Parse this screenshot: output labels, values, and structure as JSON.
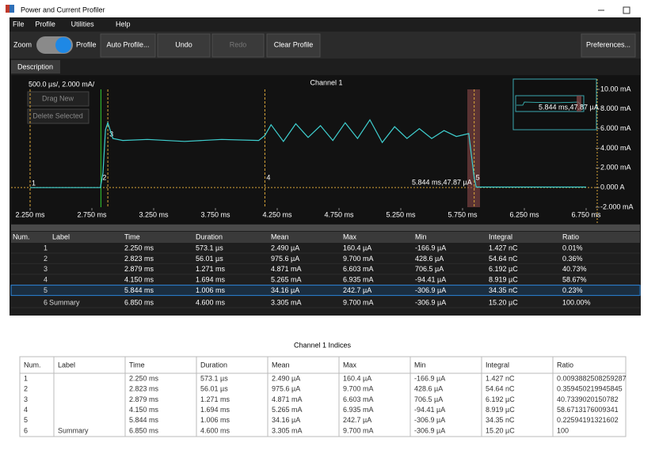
{
  "window": {
    "title": "Power and Current Profiler"
  },
  "menu": [
    "File",
    "Profile",
    "Utilities",
    "Help"
  ],
  "toolbar": {
    "zoom": "Zoom",
    "profile": "Profile",
    "buttons": [
      "Auto Profile...",
      "Undo",
      "Redo",
      "Clear Profile"
    ],
    "preferences": "Preferences..."
  },
  "tabs": [
    "Description"
  ],
  "plot": {
    "scale": "500.0 µs/, 2.000 mA/",
    "title": "Channel 1",
    "buttons": [
      "Drag New",
      "Delete Selected"
    ],
    "xlim": [
      2.25,
      6.75
    ],
    "ylim": [
      -2,
      10
    ],
    "xticks": [
      {
        "value": 2.25,
        "label": "2.250 ms"
      },
      {
        "value": 2.75,
        "label": "2.750 ms"
      },
      {
        "value": 3.25,
        "label": "3.250 ms"
      },
      {
        "value": 3.75,
        "label": "3.750 ms"
      },
      {
        "value": 4.25,
        "label": "4.250 ms"
      },
      {
        "value": 4.75,
        "label": "4.750 ms"
      },
      {
        "value": 5.25,
        "label": "5.250 ms"
      },
      {
        "value": 5.75,
        "label": "5.750 ms"
      },
      {
        "value": 6.25,
        "label": "6.250 ms"
      },
      {
        "value": 6.75,
        "label": "6.750 ms"
      }
    ],
    "yticks": [
      {
        "value": 10,
        "label": "10.00 mA"
      },
      {
        "value": 8,
        "label": "8.000 mA"
      },
      {
        "value": 6,
        "label": "6.000 mA"
      },
      {
        "value": 4,
        "label": "4.000 mA"
      },
      {
        "value": 2,
        "label": "2.000 mA"
      },
      {
        "value": 0,
        "label": "0.000 A"
      },
      {
        "value": -2,
        "label": "-2.000 mA"
      }
    ],
    "trace": {
      "color": "#3fd0d0",
      "x": [
        2.25,
        2.6,
        2.82,
        2.823,
        2.84,
        2.86,
        2.879,
        2.92,
        3.0,
        3.2,
        3.5,
        3.8,
        4.1,
        4.15,
        4.2,
        4.3,
        4.4,
        4.5,
        4.6,
        4.7,
        4.8,
        4.9,
        5.0,
        5.1,
        5.2,
        5.3,
        5.4,
        5.5,
        5.6,
        5.7,
        5.8,
        5.844,
        5.86,
        6.2,
        6.75
      ],
      "y": [
        0,
        0,
        0,
        0.3,
        1.5,
        5.9,
        6.6,
        5.0,
        4.8,
        4.9,
        4.7,
        4.9,
        4.8,
        5.3,
        6.4,
        4.7,
        6.5,
        5.1,
        6.3,
        4.8,
        6.6,
        5.0,
        6.9,
        4.6,
        6.2,
        5.0,
        6.0,
        5.0,
        5.8,
        5.2,
        5.5,
        1.0,
        0.05,
        0.05,
        0.05
      ]
    },
    "markers": [
      {
        "label": "1",
        "time": 2.25
      },
      {
        "label": "2",
        "time": 2.823
      },
      {
        "label": "3",
        "time": 2.879
      },
      {
        "label": "4",
        "time": 4.15
      },
      {
        "label": "5",
        "time": 5.844
      }
    ],
    "readout": "5.844 ms,47.87 µA"
  },
  "summary_table": {
    "headers": [
      "Num.",
      "Label",
      "Time",
      "Duration",
      "Mean",
      "Max",
      "Min",
      "Integral",
      "Ratio"
    ],
    "rows": [
      [
        "1",
        "",
        "2.250 ms",
        "573.1 µs",
        "2.490 µA",
        "160.4 µA",
        "-166.9 µA",
        "1.427 nC",
        "0.01%"
      ],
      [
        "2",
        "",
        "2.823 ms",
        "56.01 µs",
        "975.6 µA",
        "9.700 mA",
        "428.6 µA",
        "54.64 nC",
        "0.36%"
      ],
      [
        "3",
        "",
        "2.879 ms",
        "1.271 ms",
        "4.871 mA",
        "6.603 mA",
        "706.5 µA",
        "6.192 µC",
        "40.73%"
      ],
      [
        "4",
        "",
        "4.150 ms",
        "1.694 ms",
        "5.265 mA",
        "6.935 mA",
        "-94.41 µA",
        "8.919 µC",
        "58.67%"
      ],
      [
        "5",
        "",
        "5.844 ms",
        "1.006 ms",
        "34.16 µA",
        "242.7 µA",
        "-306.9 µA",
        "34.35 nC",
        "0.23%"
      ],
      [
        "6",
        "Summary",
        "6.850 ms",
        "4.600 ms",
        "3.305 mA",
        "9.700 mA",
        "-306.9 µA",
        "15.20 µC",
        "100.00%"
      ]
    ]
  },
  "indices_table": {
    "title": "Channel 1 Indices",
    "headers": [
      "Num.",
      "Label",
      "Time",
      "Duration",
      "Mean",
      "Max",
      "Min",
      "Integral",
      "Ratio"
    ],
    "rows": [
      [
        "1",
        "",
        "2.250 ms",
        "573.1 µs",
        "2.490 µA",
        "160.4 µA",
        "-166.9 µA",
        "1.427 nC",
        "0.0093882508259287"
      ],
      [
        "2",
        "",
        "2.823 ms",
        "56.01 µs",
        "975.6 µA",
        "9.700 mA",
        "428.6 µA",
        "54.64 nC",
        "0.359450219945845"
      ],
      [
        "3",
        "",
        "2.879 ms",
        "1.271 ms",
        "4.871 mA",
        "6.603 mA",
        "706.5 µA",
        "6.192 µC",
        "40.7339020150782"
      ],
      [
        "4",
        "",
        "4.150 ms",
        "1.694 ms",
        "5.265 mA",
        "6.935 mA",
        "-94.41 µA",
        "8.919 µC",
        "58.6713176009341"
      ],
      [
        "5",
        "",
        "5.844 ms",
        "1.006 ms",
        "34.16 µA",
        "242.7 µA",
        "-306.9 µA",
        "34.35 nC",
        "0.22594191321602"
      ],
      [
        "6",
        "Summary",
        "6.850 ms",
        "4.600 ms",
        "3.305 mA",
        "9.700 mA",
        "-306.9 µA",
        "15.20 µC",
        "100"
      ]
    ]
  }
}
